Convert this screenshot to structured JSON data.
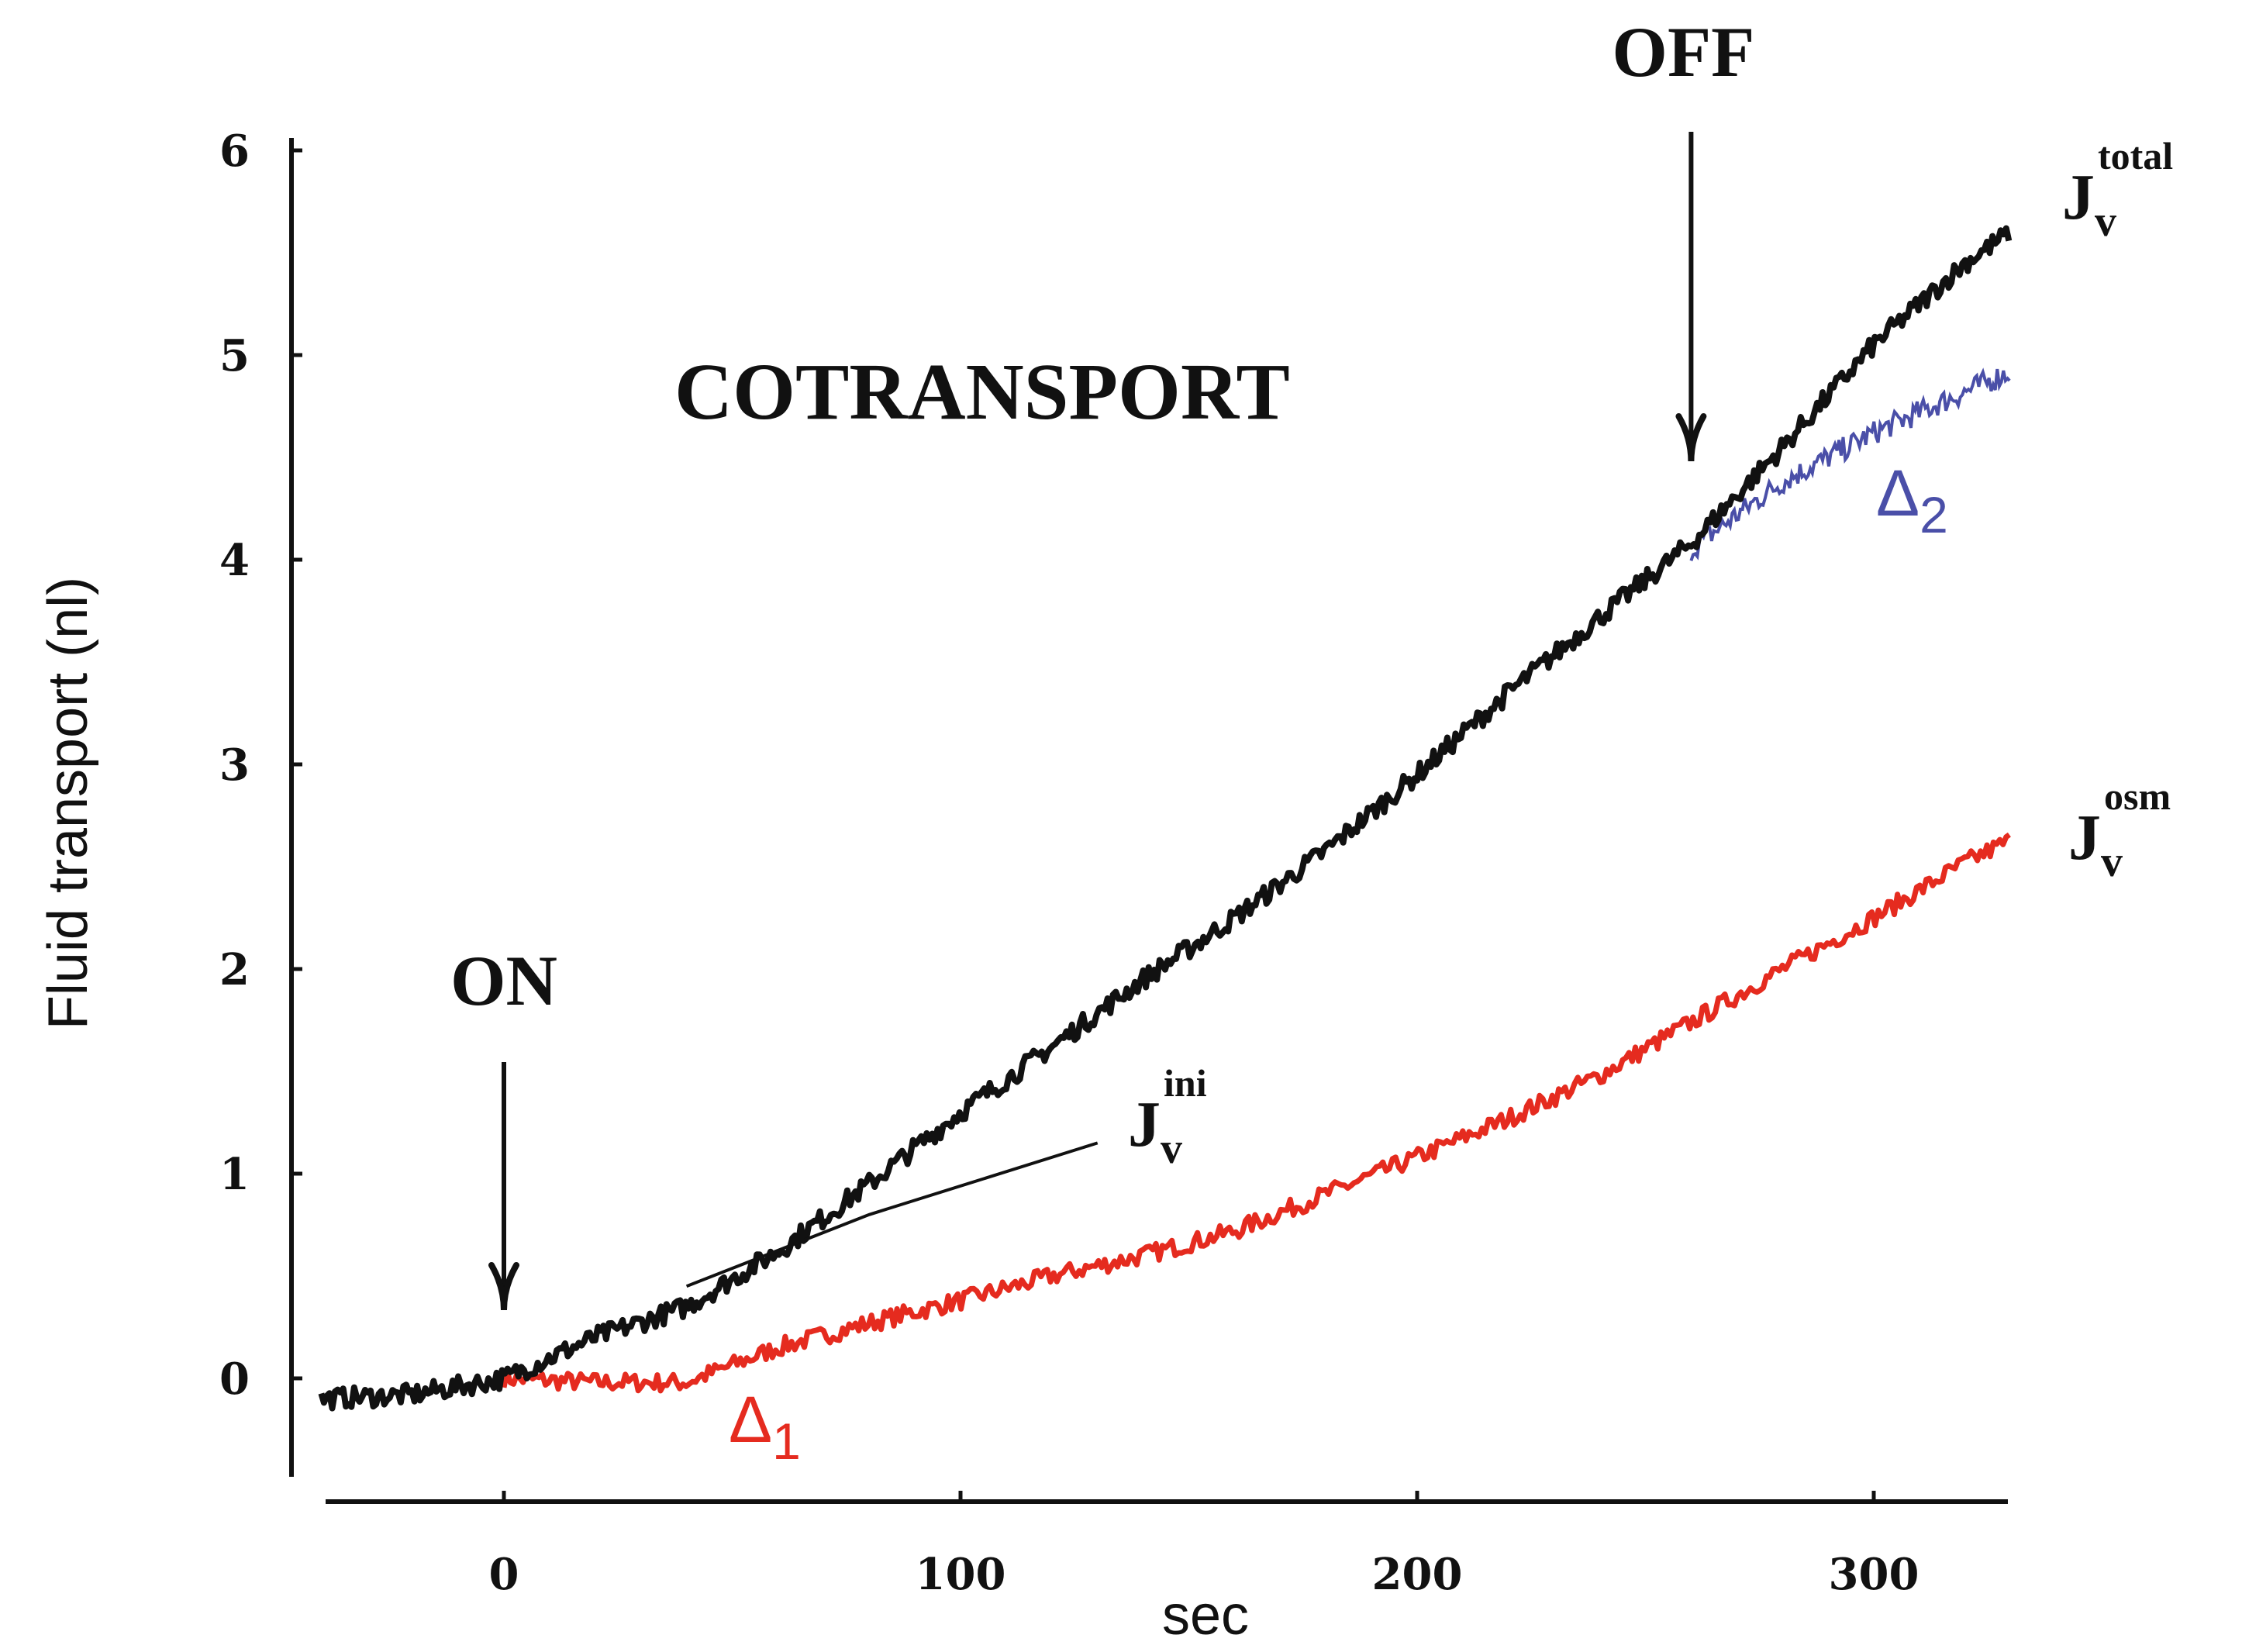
{
  "chart_data": {
    "type": "line",
    "title": "COTRANSPORT",
    "xlabel": "sec",
    "ylabel": "Fluid transport (nl)",
    "xlim": [
      -40,
      330
    ],
    "ylim": [
      -0.5,
      6.1
    ],
    "xticks": [
      0,
      100,
      200,
      300
    ],
    "yticks": [
      0,
      1,
      2,
      3,
      4,
      5,
      6
    ],
    "colors": {
      "total": "#111111",
      "osm": "#e52b1f",
      "delta2": "#4a4fa8",
      "init": "#111111",
      "axis": "#111111"
    },
    "series": [
      {
        "name": "Jv total",
        "key": "total",
        "x": [
          -40,
          -20,
          0,
          20,
          40,
          60,
          80,
          100,
          120,
          140,
          160,
          180,
          200,
          220,
          240,
          260,
          280,
          300,
          320,
          330
        ],
        "y": [
          -0.1,
          -0.08,
          0,
          0.2,
          0.35,
          0.62,
          0.95,
          1.3,
          1.62,
          1.95,
          2.25,
          2.58,
          2.95,
          3.35,
          3.72,
          4.08,
          4.55,
          5.05,
          5.45,
          5.6
        ]
      },
      {
        "name": "Jv osm",
        "key": "osm",
        "x": [
          0,
          20,
          40,
          60,
          80,
          100,
          120,
          140,
          160,
          180,
          200,
          220,
          240,
          260,
          280,
          300,
          320,
          330
        ],
        "y": [
          0,
          -0.02,
          -0.02,
          0.15,
          0.27,
          0.38,
          0.5,
          0.6,
          0.72,
          0.9,
          1.08,
          1.27,
          1.48,
          1.74,
          2.0,
          2.25,
          2.52,
          2.63
        ]
      },
      {
        "name": "Jv init",
        "key": "init",
        "x": [
          40,
          80,
          130
        ],
        "y": [
          0.45,
          0.8,
          1.15
        ]
      },
      {
        "name": "Delta2",
        "key": "delta2",
        "x": [
          260,
          270,
          280,
          290,
          300,
          310,
          320,
          330
        ],
        "y": [
          4.05,
          4.22,
          4.38,
          4.5,
          4.62,
          4.72,
          4.82,
          4.92
        ]
      }
    ],
    "annotations": {
      "on": {
        "text": "ON",
        "x": 0
      },
      "off": {
        "text": "OFF",
        "x": 260
      },
      "delta1": {
        "base": "Δ",
        "sub": "1"
      },
      "delta2": {
        "base": "Δ",
        "sub": "2"
      },
      "jv_total": {
        "base": "J",
        "sub": "v",
        "sup": "total"
      },
      "jv_osm": {
        "base": "J",
        "sub": "v",
        "sup": "osm"
      },
      "jv_init": {
        "base": "J",
        "sub": "v",
        "sup": "ini"
      }
    }
  }
}
